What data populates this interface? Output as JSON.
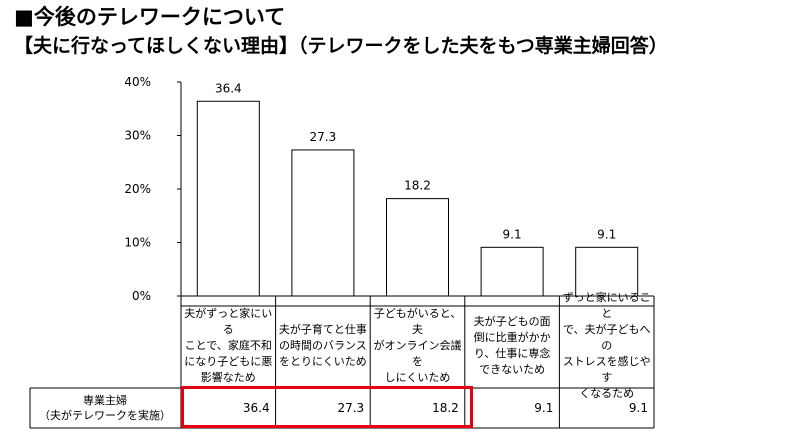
{
  "title_line1": "■今後のテレワークについて",
  "title_line2": "【夫に行なってほしくない理由】（テレワークをした夫をもつ専業主婦回答）",
  "chart_data": {
    "type": "bar",
    "categories": [
      "夫がずっと家にいる\nことで、家庭不和\nになり子どもに悪\n影響なため",
      "夫が子育てと仕事\nの時間のバランス\nをとりにくいため",
      "子どもがいると、夫\nがオンライン会議を\nしにくいため",
      "夫が子どもの面\n倒に比重がかか\nり、仕事に専念\nできないため",
      "ずっと家にいること\nで、夫が子どもへの\nストレスを感じやす\nくなるため"
    ],
    "values": [
      36.4,
      27.3,
      18.2,
      9.1,
      9.1
    ],
    "value_labels": [
      "36.4",
      "27.3",
      "18.2",
      "9.1",
      "9.1"
    ],
    "yticks": [
      "0%",
      "10%",
      "20%",
      "30%",
      "40%"
    ],
    "ylim": [
      0,
      40
    ],
    "bar_color": "#ffffff",
    "highlight_color": "#e60012"
  },
  "table": {
    "row_label": "専業主婦\n（夫がテレワークを実施）",
    "values": [
      "36.4",
      "27.3",
      "18.2",
      "9.1",
      "9.1"
    ]
  }
}
